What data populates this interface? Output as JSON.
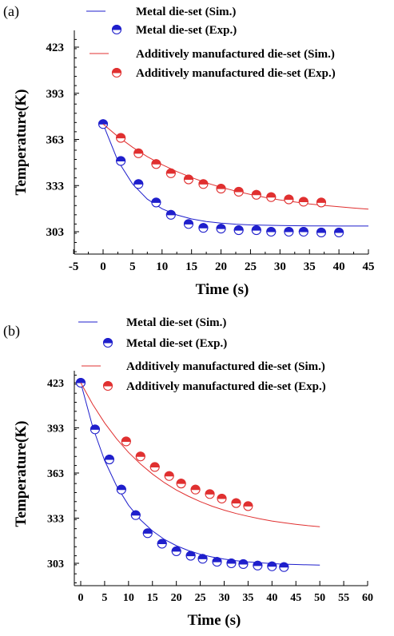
{
  "chart_data": [
    {
      "panel_label": "(a)",
      "type": "scatter",
      "xlabel": "Time (s)",
      "ylabel": "Temperature(K)",
      "xlim": [
        -5,
        45
      ],
      "ylim": [
        290,
        433
      ],
      "xticks": [
        -5,
        0,
        5,
        10,
        15,
        20,
        25,
        30,
        35,
        40,
        45
      ],
      "yticks": [
        303,
        333,
        363,
        393,
        423
      ],
      "series": [
        {
          "name": "Metal die-set (Sim.)",
          "kind": "line",
          "color": "#1f1fcc",
          "x": [
            0,
            2.5,
            5,
            7.5,
            10,
            12.5,
            15,
            17.5,
            20,
            22.5,
            25,
            27.5,
            30,
            32.5,
            35,
            37.5,
            40,
            42.5,
            45
          ],
          "y": [
            373,
            349.2,
            334.0,
            324.2,
            317.9,
            313.9,
            311.3,
            309.6,
            308.6,
            307.9,
            307.4,
            307.2,
            307.0,
            306.9,
            306.8,
            306.8,
            306.7,
            306.7,
            306.7
          ]
        },
        {
          "name": "Metal die-set (Exp.)",
          "kind": "points",
          "color": "#1f1fcc",
          "x": [
            0,
            3,
            6,
            9,
            11.5,
            14.5,
            17,
            20,
            23,
            26,
            28.5,
            31.5,
            34,
            37,
            40
          ],
          "y": [
            373,
            349,
            334,
            322,
            314,
            308,
            305.5,
            305,
            304,
            304,
            303,
            303,
            303,
            302.5,
            302.5
          ]
        },
        {
          "name": "Additively manufactured die-set (Sim.)",
          "kind": "line",
          "color": "#e03030",
          "x": [
            0,
            2.5,
            5,
            7.5,
            10,
            12.5,
            15,
            17.5,
            20,
            22.5,
            25,
            27.5,
            30,
            32.5,
            35,
            37.5,
            40,
            42.5,
            45
          ],
          "y": [
            373,
            364.9,
            357.9,
            351.8,
            346.6,
            342.1,
            338.2,
            334.8,
            331.9,
            329.4,
            327.2,
            325.3,
            323.7,
            322.3,
            321.1,
            320.1,
            319.2,
            318.4,
            317.7
          ]
        },
        {
          "name": "Additively manufactured die-set (Exp.)",
          "kind": "points",
          "color": "#e03030",
          "x": [
            3,
            6,
            9,
            11.5,
            14.5,
            17,
            20,
            23,
            26,
            28.5,
            31.5,
            34,
            37
          ],
          "y": [
            364,
            354,
            347,
            341,
            337,
            334,
            331,
            329,
            327,
            325.5,
            324,
            322.5,
            322
          ]
        }
      ]
    },
    {
      "panel_label": "(b)",
      "type": "scatter",
      "xlabel": "Time (s)",
      "ylabel": "Temperature(K)",
      "xlim": [
        -2,
        60
      ],
      "ylim": [
        290,
        433
      ],
      "xticks": [
        0,
        5,
        10,
        15,
        20,
        25,
        30,
        35,
        40,
        45,
        50,
        55,
        60
      ],
      "yticks": [
        303,
        333,
        363,
        393,
        423
      ],
      "series": [
        {
          "name": "Metal die-set (Sim.)",
          "kind": "line",
          "color": "#1f1fcc",
          "x": [
            0,
            2.5,
            5,
            7.5,
            10,
            12.5,
            15,
            17.5,
            20,
            22.5,
            25,
            27.5,
            30,
            32.5,
            35,
            37.5,
            40,
            42.5,
            45,
            47.5,
            50
          ],
          "y": [
            423,
            393.6,
            371.3,
            354.4,
            341.6,
            331.9,
            324.5,
            318.9,
            314.7,
            311.5,
            309.0,
            307.2,
            305.8,
            304.7,
            303.9,
            303.3,
            302.8,
            302.4,
            302.2,
            302.0,
            301.8
          ]
        },
        {
          "name": "Metal die-set (Exp.)",
          "kind": "points",
          "color": "#1f1fcc",
          "x": [
            0,
            3,
            6,
            8.5,
            11.5,
            14,
            17,
            20,
            23,
            25.5,
            28.5,
            31.5,
            34,
            37,
            40,
            42.5
          ],
          "y": [
            423,
            392,
            372,
            352,
            335,
            323,
            316,
            311,
            308,
            306,
            304,
            303,
            302.5,
            301.5,
            301,
            300.5
          ]
        },
        {
          "name": "Additively manufactured die-set (Sim.)",
          "kind": "line",
          "color": "#e03030",
          "x": [
            0,
            2.5,
            5,
            7.5,
            10,
            12.5,
            15,
            17.5,
            20,
            22.5,
            25,
            27.5,
            30,
            32.5,
            35,
            37.5,
            40,
            42.5,
            45,
            47.5,
            50
          ],
          "y": [
            423,
            408.6,
            396.3,
            385.7,
            376.7,
            369.0,
            362.3,
            356.6,
            351.7,
            347.6,
            344.0,
            340.9,
            338.3,
            336.1,
            334.2,
            332.5,
            331.1,
            329.9,
            328.9,
            328.0,
            327.3
          ]
        },
        {
          "name": "Additively manufactured die-set (Exp.)",
          "kind": "points",
          "color": "#e03030",
          "x": [
            9.5,
            12.5,
            15.5,
            18.5,
            21,
            24,
            27,
            29.5,
            32.5,
            35
          ],
          "y": [
            384,
            374,
            367,
            361,
            356,
            352,
            349,
            346,
            343,
            341
          ]
        }
      ]
    }
  ]
}
